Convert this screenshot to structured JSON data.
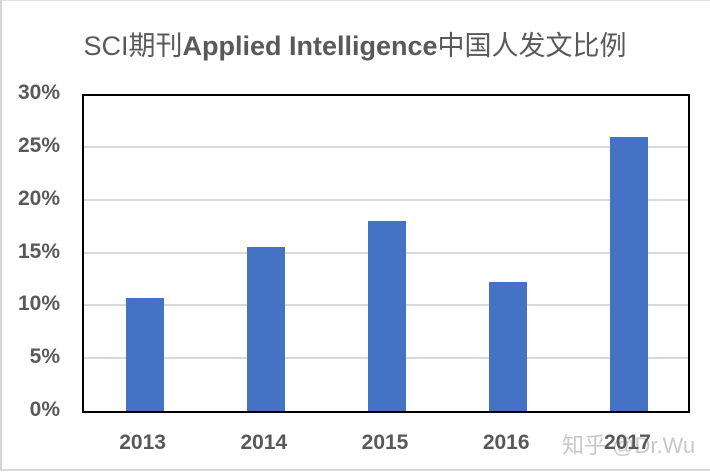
{
  "chart_data": {
    "type": "bar",
    "title": "SCI期刊Applied Intelligence中国人发文比例",
    "title_parts": {
      "prefix": "SCI期刊",
      "bold": "Applied Intelligence",
      "suffix": "中国人发文比例"
    },
    "categories": [
      "2013",
      "2014",
      "2015",
      "2016",
      "2017"
    ],
    "values": [
      10.7,
      15.5,
      18.0,
      12.2,
      25.9
    ],
    "value_unit": "%",
    "xlabel": "",
    "ylabel": "",
    "ylim": [
      0,
      30
    ],
    "yticks": [
      "0%",
      "5%",
      "10%",
      "15%",
      "20%",
      "25%",
      "30%"
    ],
    "grid": true,
    "legend": null,
    "bar_color": "#4472c4"
  },
  "watermark": "知乎 @Dr.Wu"
}
